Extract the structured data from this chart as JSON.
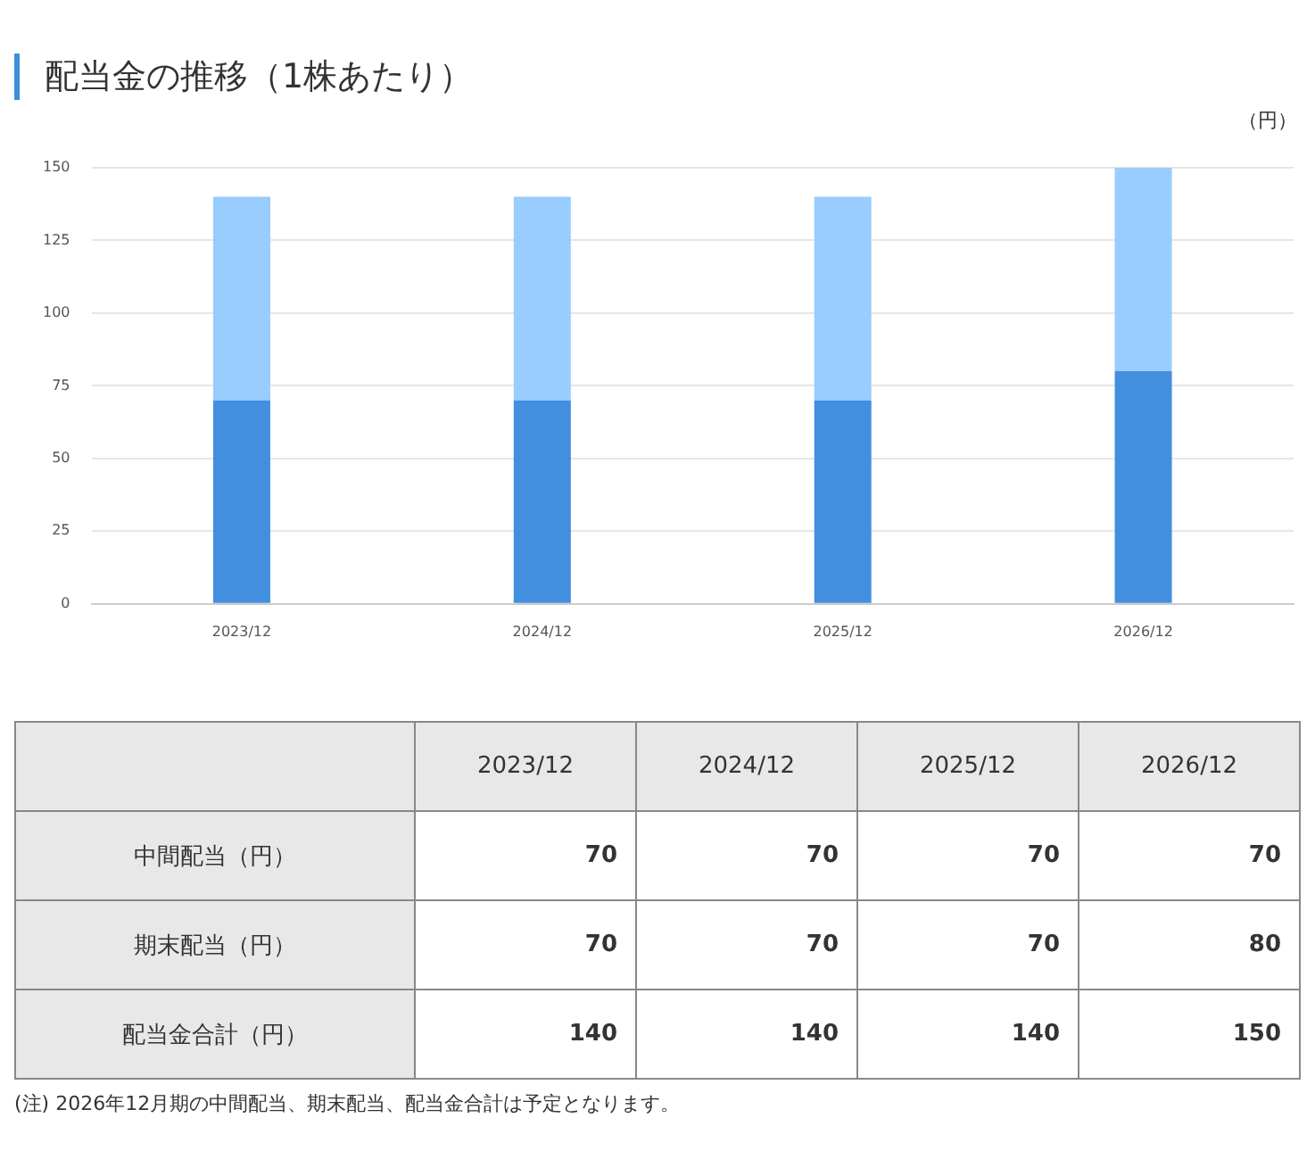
{
  "chart_data": [
    {
      "type": "bar",
      "title": "配当金の推移（1株あたり）",
      "ylabel": "（円）",
      "categories": [
        "2023/12",
        "2024/12",
        "2025/12",
        "2026/12"
      ],
      "stacked": true,
      "series": [
        {
          "color": "#428fe0",
          "values": [
            70,
            70,
            70,
            80
          ]
        },
        {
          "color": "#99ccff",
          "values": [
            70,
            70,
            70,
            70
          ]
        }
      ],
      "ylim": [
        0,
        150
      ],
      "yticks": [
        0,
        25,
        50,
        75,
        100,
        125,
        150
      ],
      "grid": "y",
      "legend": false
    },
    {
      "type": "heatmap",
      "categories": [
        "2023/12",
        "2024/12",
        "2025/12",
        "2026/12"
      ],
      "y_categories": [
        "中間配当（円）",
        "期末配当（円）",
        "配当金合計（円）"
      ],
      "cells": [
        [
          70,
          70,
          70,
          70
        ],
        [
          70,
          70,
          70,
          80
        ],
        [
          140,
          140,
          140,
          150
        ]
      ],
      "data_labels": true,
      "annotations": [
        "(注) 2026年12月期の中間配当、期末配当、配当金合計は予定となります。"
      ]
    }
  ]
}
